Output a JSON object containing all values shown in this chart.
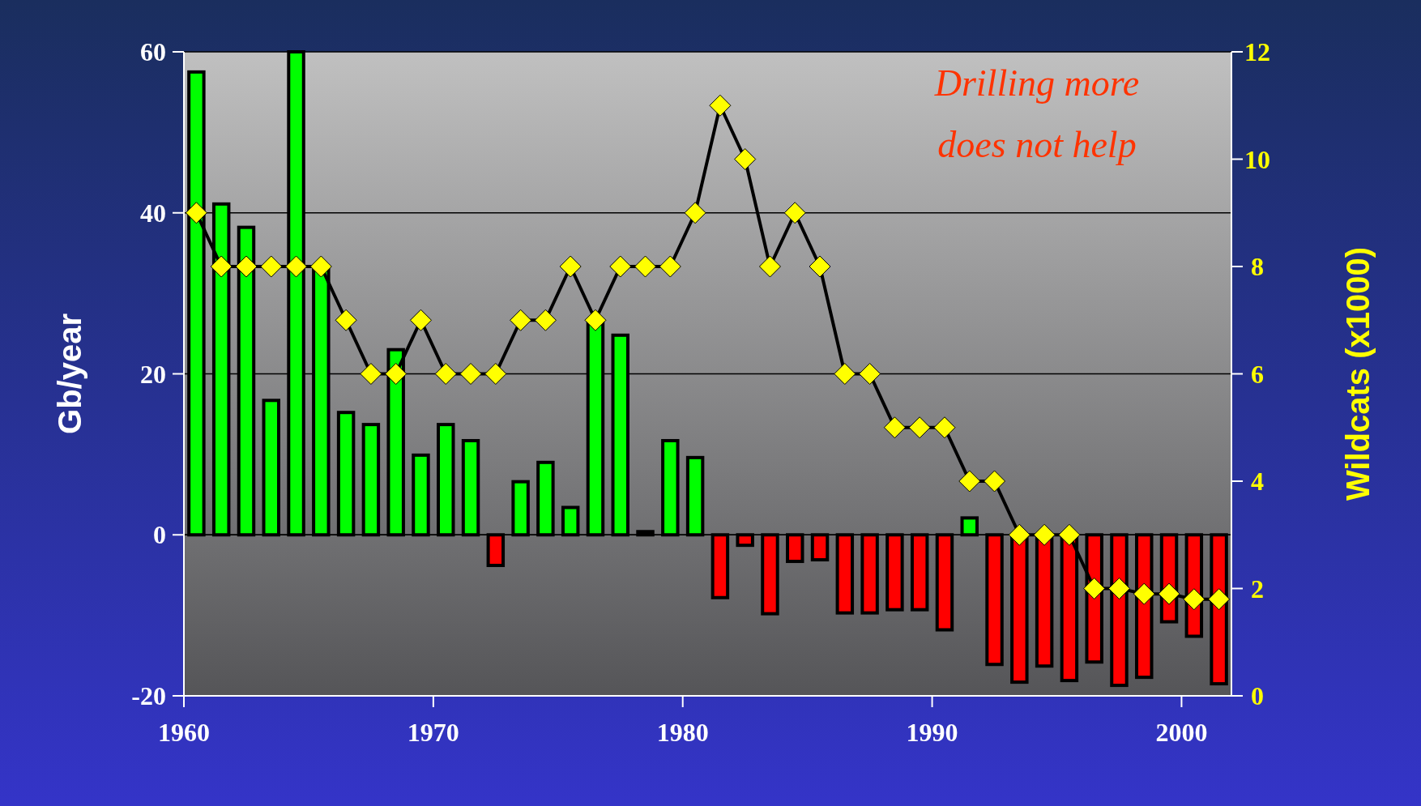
{
  "chart_data": {
    "type": "bar",
    "ylabel": "Gb/year",
    "y2label": "Wildcats (x1000)",
    "annotations": [
      "Drilling more\ndoes not help"
    ],
    "x": [
      1960.5,
      1961.5,
      1962.5,
      1963.5,
      1964.5,
      1965.5,
      1966.5,
      1967.5,
      1968.5,
      1969.5,
      1970.5,
      1971.5,
      1972.5,
      1973.5,
      1974.5,
      1975.5,
      1976.5,
      1977.5,
      1978.5,
      1979.5,
      1980.5,
      1981.5,
      1982.5,
      1983.5,
      1984.5,
      1985.5,
      1986.5,
      1987.5,
      1988.5,
      1989.5,
      1990.5,
      1991.5,
      1992.5,
      1993.5,
      1994.5,
      1995.5,
      1996.5,
      1997.5,
      1998.5,
      1999.5,
      2000.5,
      2001.5
    ],
    "xlim": [
      1960,
      2002
    ],
    "xticks": [
      1960,
      1970,
      1980,
      1990,
      2000
    ],
    "ylim": [
      -20,
      60
    ],
    "yticks": [
      -20,
      0,
      20,
      40,
      60
    ],
    "y2lim": [
      0,
      12
    ],
    "y2ticks": [
      0,
      2,
      4,
      6,
      8,
      10,
      12
    ],
    "grid": "y",
    "series": [
      {
        "type": "bar",
        "values": [
          57.5,
          41.1,
          38.2,
          16.7,
          60,
          33.0,
          15.2,
          13.7,
          23.0,
          9.9,
          13.7,
          11.7,
          -3.8,
          6.6,
          9.0,
          3.4,
          26.4,
          24.8,
          0.4,
          11.7,
          9.6,
          -7.8,
          -1.3,
          -9.8,
          -3.3,
          -3.1,
          -9.7,
          -9.7,
          -9.3,
          -9.3,
          -11.8,
          2.1,
          -16.1,
          -18.3,
          -16.3,
          -18.1,
          -15.8,
          -18.7,
          -17.7,
          -10.8,
          -12.6,
          -18.5
        ],
        "colors": [
          "#00ff00",
          "#00ff00",
          "#00ff00",
          "#00ff00",
          "#00ff00",
          "#00ff00",
          "#00ff00",
          "#00ff00",
          "#00ff00",
          "#00ff00",
          "#00ff00",
          "#00ff00",
          "#ff0000",
          "#00ff00",
          "#00ff00",
          "#00ff00",
          "#00ff00",
          "#00ff00",
          "#00ff00",
          "#00ff00",
          "#00ff00",
          "#ff0000",
          "#ff0000",
          "#ff0000",
          "#ff0000",
          "#ff0000",
          "#ff0000",
          "#ff0000",
          "#ff0000",
          "#ff0000",
          "#ff0000",
          "#00ff00",
          "#ff0000",
          "#ff0000",
          "#ff0000",
          "#ff0000",
          "#ff0000",
          "#ff0000",
          "#ff0000",
          "#ff0000",
          "#ff0000",
          "#ff0000"
        ]
      },
      {
        "type": "line",
        "axis": "y2",
        "color": "#ffff00",
        "marker": "diamond",
        "values": [
          9,
          8,
          8,
          8,
          8,
          8,
          7,
          6,
          6,
          7,
          6,
          6,
          6,
          7,
          7,
          8,
          7,
          8,
          8,
          8,
          9,
          11,
          10,
          8,
          9,
          8,
          6,
          6,
          5,
          5,
          5,
          4,
          4,
          3,
          3,
          3,
          2,
          2,
          1.9,
          1.9,
          1.8,
          1.8
        ]
      }
    ]
  }
}
